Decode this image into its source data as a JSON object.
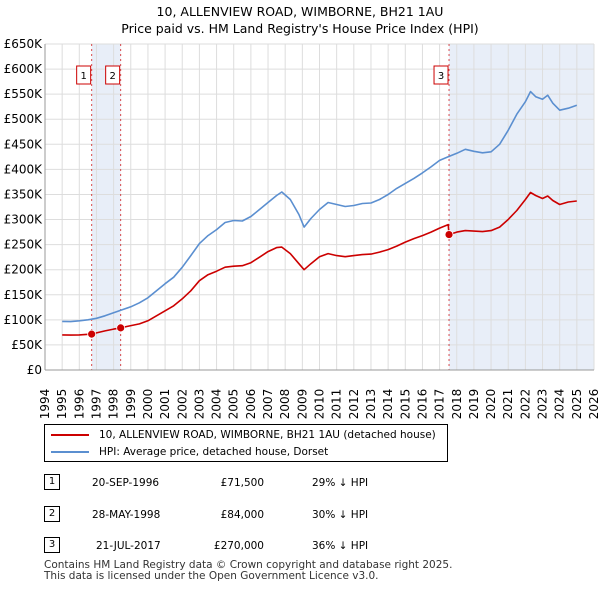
{
  "header": {
    "title_line1": "10, ALLENVIEW ROAD, WIMBORNE, BH21 1AU",
    "title_line2": "Price paid vs. HM Land Registry's House Price Index (HPI)"
  },
  "chart_data": {
    "type": "line",
    "x_ticks": [
      1994,
      1995,
      1996,
      1997,
      1998,
      1999,
      2000,
      2001,
      2002,
      2003,
      2004,
      2005,
      2006,
      2007,
      2008,
      2009,
      2010,
      2011,
      2012,
      2013,
      2014,
      2015,
      2016,
      2017,
      2018,
      2019,
      2020,
      2021,
      2022,
      2023,
      2024,
      2025,
      2026
    ],
    "y_ticks": [
      {
        "value": 0,
        "label": "£0"
      },
      {
        "value": 50000,
        "label": "£50K"
      },
      {
        "value": 100000,
        "label": "£100K"
      },
      {
        "value": 150000,
        "label": "£150K"
      },
      {
        "value": 200000,
        "label": "£200K"
      },
      {
        "value": 250000,
        "label": "£250K"
      },
      {
        "value": 300000,
        "label": "£300K"
      },
      {
        "value": 350000,
        "label": "£350K"
      },
      {
        "value": 400000,
        "label": "£400K"
      },
      {
        "value": 450000,
        "label": "£450K"
      },
      {
        "value": 500000,
        "label": "£500K"
      },
      {
        "value": 550000,
        "label": "£550K"
      },
      {
        "value": 600000,
        "label": "£600K"
      },
      {
        "value": 650000,
        "label": "£650K"
      }
    ],
    "xlim": [
      1994,
      2026
    ],
    "ylim": [
      0,
      650000
    ],
    "grid": true,
    "shaded_periods": [
      [
        1996.72,
        1998.41
      ],
      [
        2017.55,
        2026
      ]
    ],
    "series": [
      {
        "name": "10, ALLENVIEW ROAD, WIMBORNE, BH21 1AU (detached house)",
        "color": "#cc0000",
        "points": [
          [
            1995,
            70000
          ],
          [
            1995.5,
            69500
          ],
          [
            1996,
            70000
          ],
          [
            1996.72,
            71500
          ],
          [
            1997,
            74000
          ],
          [
            1997.5,
            78000
          ],
          [
            1998,
            81500
          ],
          [
            1998.41,
            84000
          ],
          [
            1998.8,
            87000
          ],
          [
            1999.5,
            92000
          ],
          [
            2000,
            98000
          ],
          [
            2000.5,
            108000
          ],
          [
            2001,
            118000
          ],
          [
            2001.5,
            128000
          ],
          [
            2002,
            142000
          ],
          [
            2002.5,
            158000
          ],
          [
            2003,
            178000
          ],
          [
            2003.5,
            190000
          ],
          [
            2004,
            197000
          ],
          [
            2004.5,
            205000
          ],
          [
            2005,
            207000
          ],
          [
            2005.5,
            208000
          ],
          [
            2006,
            214000
          ],
          [
            2006.5,
            225000
          ],
          [
            2007,
            236000
          ],
          [
            2007.5,
            244000
          ],
          [
            2007.8,
            245000
          ],
          [
            2008.3,
            232000
          ],
          [
            2008.8,
            212000
          ],
          [
            2009.1,
            200000
          ],
          [
            2009.5,
            212000
          ],
          [
            2010,
            226000
          ],
          [
            2010.5,
            232000
          ],
          [
            2011,
            228000
          ],
          [
            2011.5,
            226000
          ],
          [
            2012,
            228000
          ],
          [
            2012.5,
            230000
          ],
          [
            2013,
            231000
          ],
          [
            2013.5,
            235000
          ],
          [
            2014,
            240000
          ],
          [
            2014.5,
            247000
          ],
          [
            2015,
            255000
          ],
          [
            2015.5,
            262000
          ],
          [
            2016,
            268000
          ],
          [
            2016.5,
            275000
          ],
          [
            2017,
            283000
          ],
          [
            2017.5,
            290000
          ],
          [
            2017.55,
            270000
          ],
          [
            2018,
            275000
          ],
          [
            2018.5,
            278000
          ],
          [
            2019,
            277000
          ],
          [
            2019.5,
            276000
          ],
          [
            2020,
            278000
          ],
          [
            2020.5,
            285000
          ],
          [
            2021,
            300000
          ],
          [
            2021.5,
            318000
          ],
          [
            2022,
            340000
          ],
          [
            2022.3,
            354000
          ],
          [
            2022.6,
            348000
          ],
          [
            2023,
            342000
          ],
          [
            2023.3,
            347000
          ],
          [
            2023.6,
            338000
          ],
          [
            2024,
            330000
          ],
          [
            2024.5,
            335000
          ],
          [
            2025,
            337000
          ]
        ]
      },
      {
        "name": "HPI: Average price, detached house, Dorset",
        "color": "#5b8fd0",
        "points": [
          [
            1995,
            97000
          ],
          [
            1995.5,
            96500
          ],
          [
            1996,
            98000
          ],
          [
            1996.5,
            100000
          ],
          [
            1997,
            103000
          ],
          [
            1997.5,
            108000
          ],
          [
            1998,
            114000
          ],
          [
            1998.5,
            120000
          ],
          [
            1999,
            126000
          ],
          [
            1999.5,
            134000
          ],
          [
            2000,
            144000
          ],
          [
            2000.5,
            158000
          ],
          [
            2001,
            172000
          ],
          [
            2001.5,
            185000
          ],
          [
            2002,
            205000
          ],
          [
            2002.5,
            228000
          ],
          [
            2003,
            252000
          ],
          [
            2003.5,
            268000
          ],
          [
            2004,
            280000
          ],
          [
            2004.5,
            294000
          ],
          [
            2005,
            298000
          ],
          [
            2005.5,
            297000
          ],
          [
            2006,
            306000
          ],
          [
            2006.5,
            320000
          ],
          [
            2007,
            334000
          ],
          [
            2007.5,
            348000
          ],
          [
            2007.8,
            355000
          ],
          [
            2008.3,
            340000
          ],
          [
            2008.8,
            310000
          ],
          [
            2009.1,
            285000
          ],
          [
            2009.5,
            302000
          ],
          [
            2010,
            320000
          ],
          [
            2010.5,
            334000
          ],
          [
            2011,
            330000
          ],
          [
            2011.5,
            326000
          ],
          [
            2012,
            328000
          ],
          [
            2012.5,
            332000
          ],
          [
            2013,
            333000
          ],
          [
            2013.5,
            340000
          ],
          [
            2014,
            350000
          ],
          [
            2014.5,
            362000
          ],
          [
            2015,
            372000
          ],
          [
            2015.5,
            382000
          ],
          [
            2016,
            393000
          ],
          [
            2016.5,
            405000
          ],
          [
            2017,
            418000
          ],
          [
            2017.5,
            425000
          ],
          [
            2018,
            432000
          ],
          [
            2018.5,
            440000
          ],
          [
            2019,
            436000
          ],
          [
            2019.5,
            433000
          ],
          [
            2020,
            435000
          ],
          [
            2020.5,
            450000
          ],
          [
            2021,
            478000
          ],
          [
            2021.5,
            510000
          ],
          [
            2022,
            535000
          ],
          [
            2022.3,
            555000
          ],
          [
            2022.6,
            545000
          ],
          [
            2023,
            540000
          ],
          [
            2023.3,
            548000
          ],
          [
            2023.6,
            532000
          ],
          [
            2024,
            518000
          ],
          [
            2024.5,
            522000
          ],
          [
            2025,
            528000
          ]
        ]
      }
    ],
    "markers": [
      {
        "id": "1",
        "x": 1996.72,
        "y": 71500
      },
      {
        "id": "2",
        "x": 1998.41,
        "y": 84000
      },
      {
        "id": "3",
        "x": 2017.55,
        "y": 270000
      }
    ]
  },
  "legend": {
    "red_label": "10, ALLENVIEW ROAD, WIMBORNE, BH21 1AU (detached house)",
    "blue_label": "HPI: Average price, detached house, Dorset"
  },
  "transactions": [
    {
      "num": "1",
      "date": "20-SEP-1996",
      "price": "£71,500",
      "hpi": "29% ↓ HPI"
    },
    {
      "num": "2",
      "date": "28-MAY-1998",
      "price": "£84,000",
      "hpi": "30% ↓ HPI"
    },
    {
      "num": "3",
      "date": "21-JUL-2017",
      "price": "£270,000",
      "hpi": "36% ↓ HPI"
    }
  ],
  "footer": {
    "line1": "Contains HM Land Registry data © Crown copyright and database right 2025.",
    "line2": "This data is licensed under the Open Government Licence v3.0."
  },
  "colors": {
    "red": "#cc0000",
    "blue": "#5b8fd0",
    "shade": "#e8eef8",
    "grid": "#dddddd"
  }
}
